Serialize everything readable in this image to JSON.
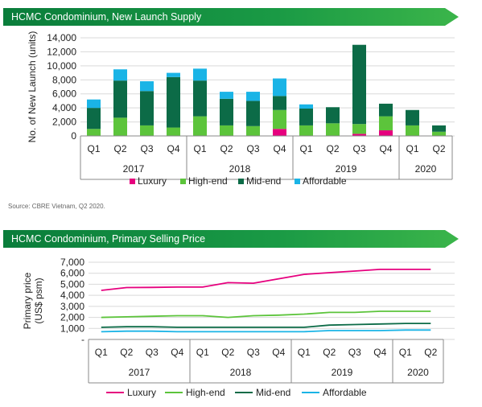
{
  "chart1_title": "HCMC Condominium, New Launch Supply",
  "chart2_title": "HCMC Condominium, Primary Selling Price",
  "source": "Source: CBRE Vietnam, Q2 2020.",
  "colors": {
    "luxury": "#e6007e",
    "highend": "#5cc43b",
    "midend": "#0c6b47",
    "affordable": "#1ab4e6"
  },
  "chart_data": [
    {
      "type": "bar",
      "stacked": true,
      "title": "",
      "ylabel": "No. of New Launch (units)",
      "xlabel": "",
      "ylim": [
        0,
        14000
      ],
      "yticks": [
        "0",
        "2,000",
        "4,000",
        "6,000",
        "8,000",
        "10,000",
        "12,000",
        "14,000"
      ],
      "ytick_values": [
        0,
        2000,
        4000,
        6000,
        8000,
        10000,
        12000,
        14000
      ],
      "categories": [
        "Q1",
        "Q2",
        "Q3",
        "Q4",
        "Q1",
        "Q2",
        "Q3",
        "Q4",
        "Q1",
        "Q2",
        "Q3",
        "Q4",
        "Q1",
        "Q2"
      ],
      "years": [
        {
          "label": "2017",
          "count": 4
        },
        {
          "label": "2018",
          "count": 4
        },
        {
          "label": "2019",
          "count": 4
        },
        {
          "label": "2020",
          "count": 2
        }
      ],
      "grid": true,
      "legend": "bottom",
      "series": [
        {
          "name": "Luxury",
          "color": "#e6007e",
          "values": [
            0,
            0,
            0,
            0,
            0,
            0,
            0,
            1000,
            0,
            0,
            300,
            800,
            0,
            0
          ]
        },
        {
          "name": "High-end",
          "color": "#5cc43b",
          "values": [
            1000,
            2600,
            1500,
            1200,
            2800,
            1500,
            1400,
            2700,
            1500,
            1800,
            1400,
            2000,
            1500,
            600
          ]
        },
        {
          "name": "Mid-end",
          "color": "#0c6b47",
          "values": [
            3000,
            5300,
            4900,
            7200,
            5100,
            3800,
            3600,
            2000,
            2400,
            2300,
            11300,
            1800,
            2200,
            900
          ]
        },
        {
          "name": "Affordable",
          "color": "#1ab4e6",
          "values": [
            1200,
            1600,
            1400,
            600,
            1700,
            1000,
            1300,
            2500,
            600,
            0,
            0,
            0,
            0,
            0
          ]
        }
      ]
    },
    {
      "type": "line",
      "title": "",
      "ylabel": "Primary price\n(US$ psm)",
      "xlabel": "",
      "ylim": [
        0,
        7000
      ],
      "yticks": [
        "-",
        "1,000",
        "2,000",
        "3,000",
        "4,000",
        "5,000",
        "6,000",
        "7,000"
      ],
      "ytick_values": [
        0,
        1000,
        2000,
        3000,
        4000,
        5000,
        6000,
        7000
      ],
      "categories": [
        "Q1",
        "Q2",
        "Q3",
        "Q4",
        "Q1",
        "Q2",
        "Q3",
        "Q4",
        "Q1",
        "Q2",
        "Q3",
        "Q4",
        "Q1",
        "Q2"
      ],
      "years": [
        {
          "label": "2017",
          "count": 4
        },
        {
          "label": "2018",
          "count": 4
        },
        {
          "label": "2019",
          "count": 4
        },
        {
          "label": "2020",
          "count": 2
        }
      ],
      "grid": true,
      "legend": "bottom",
      "series": [
        {
          "name": "Luxury",
          "color": "#e6007e",
          "values": [
            4450,
            4700,
            4720,
            4750,
            4750,
            5150,
            5100,
            5500,
            5900,
            6050,
            6200,
            6350,
            6350,
            6350
          ]
        },
        {
          "name": "High-end",
          "color": "#5cc43b",
          "values": [
            2000,
            2050,
            2100,
            2150,
            2150,
            2000,
            2150,
            2200,
            2300,
            2450,
            2450,
            2550,
            2550,
            2550
          ]
        },
        {
          "name": "Mid-end",
          "color": "#0c6b47",
          "values": [
            1100,
            1150,
            1150,
            1100,
            1100,
            1100,
            1100,
            1100,
            1100,
            1300,
            1350,
            1400,
            1450,
            1450
          ]
        },
        {
          "name": "Affordable",
          "color": "#1ab4e6",
          "values": [
            700,
            750,
            750,
            700,
            700,
            700,
            700,
            700,
            700,
            800,
            800,
            800,
            850,
            850
          ]
        }
      ]
    }
  ]
}
